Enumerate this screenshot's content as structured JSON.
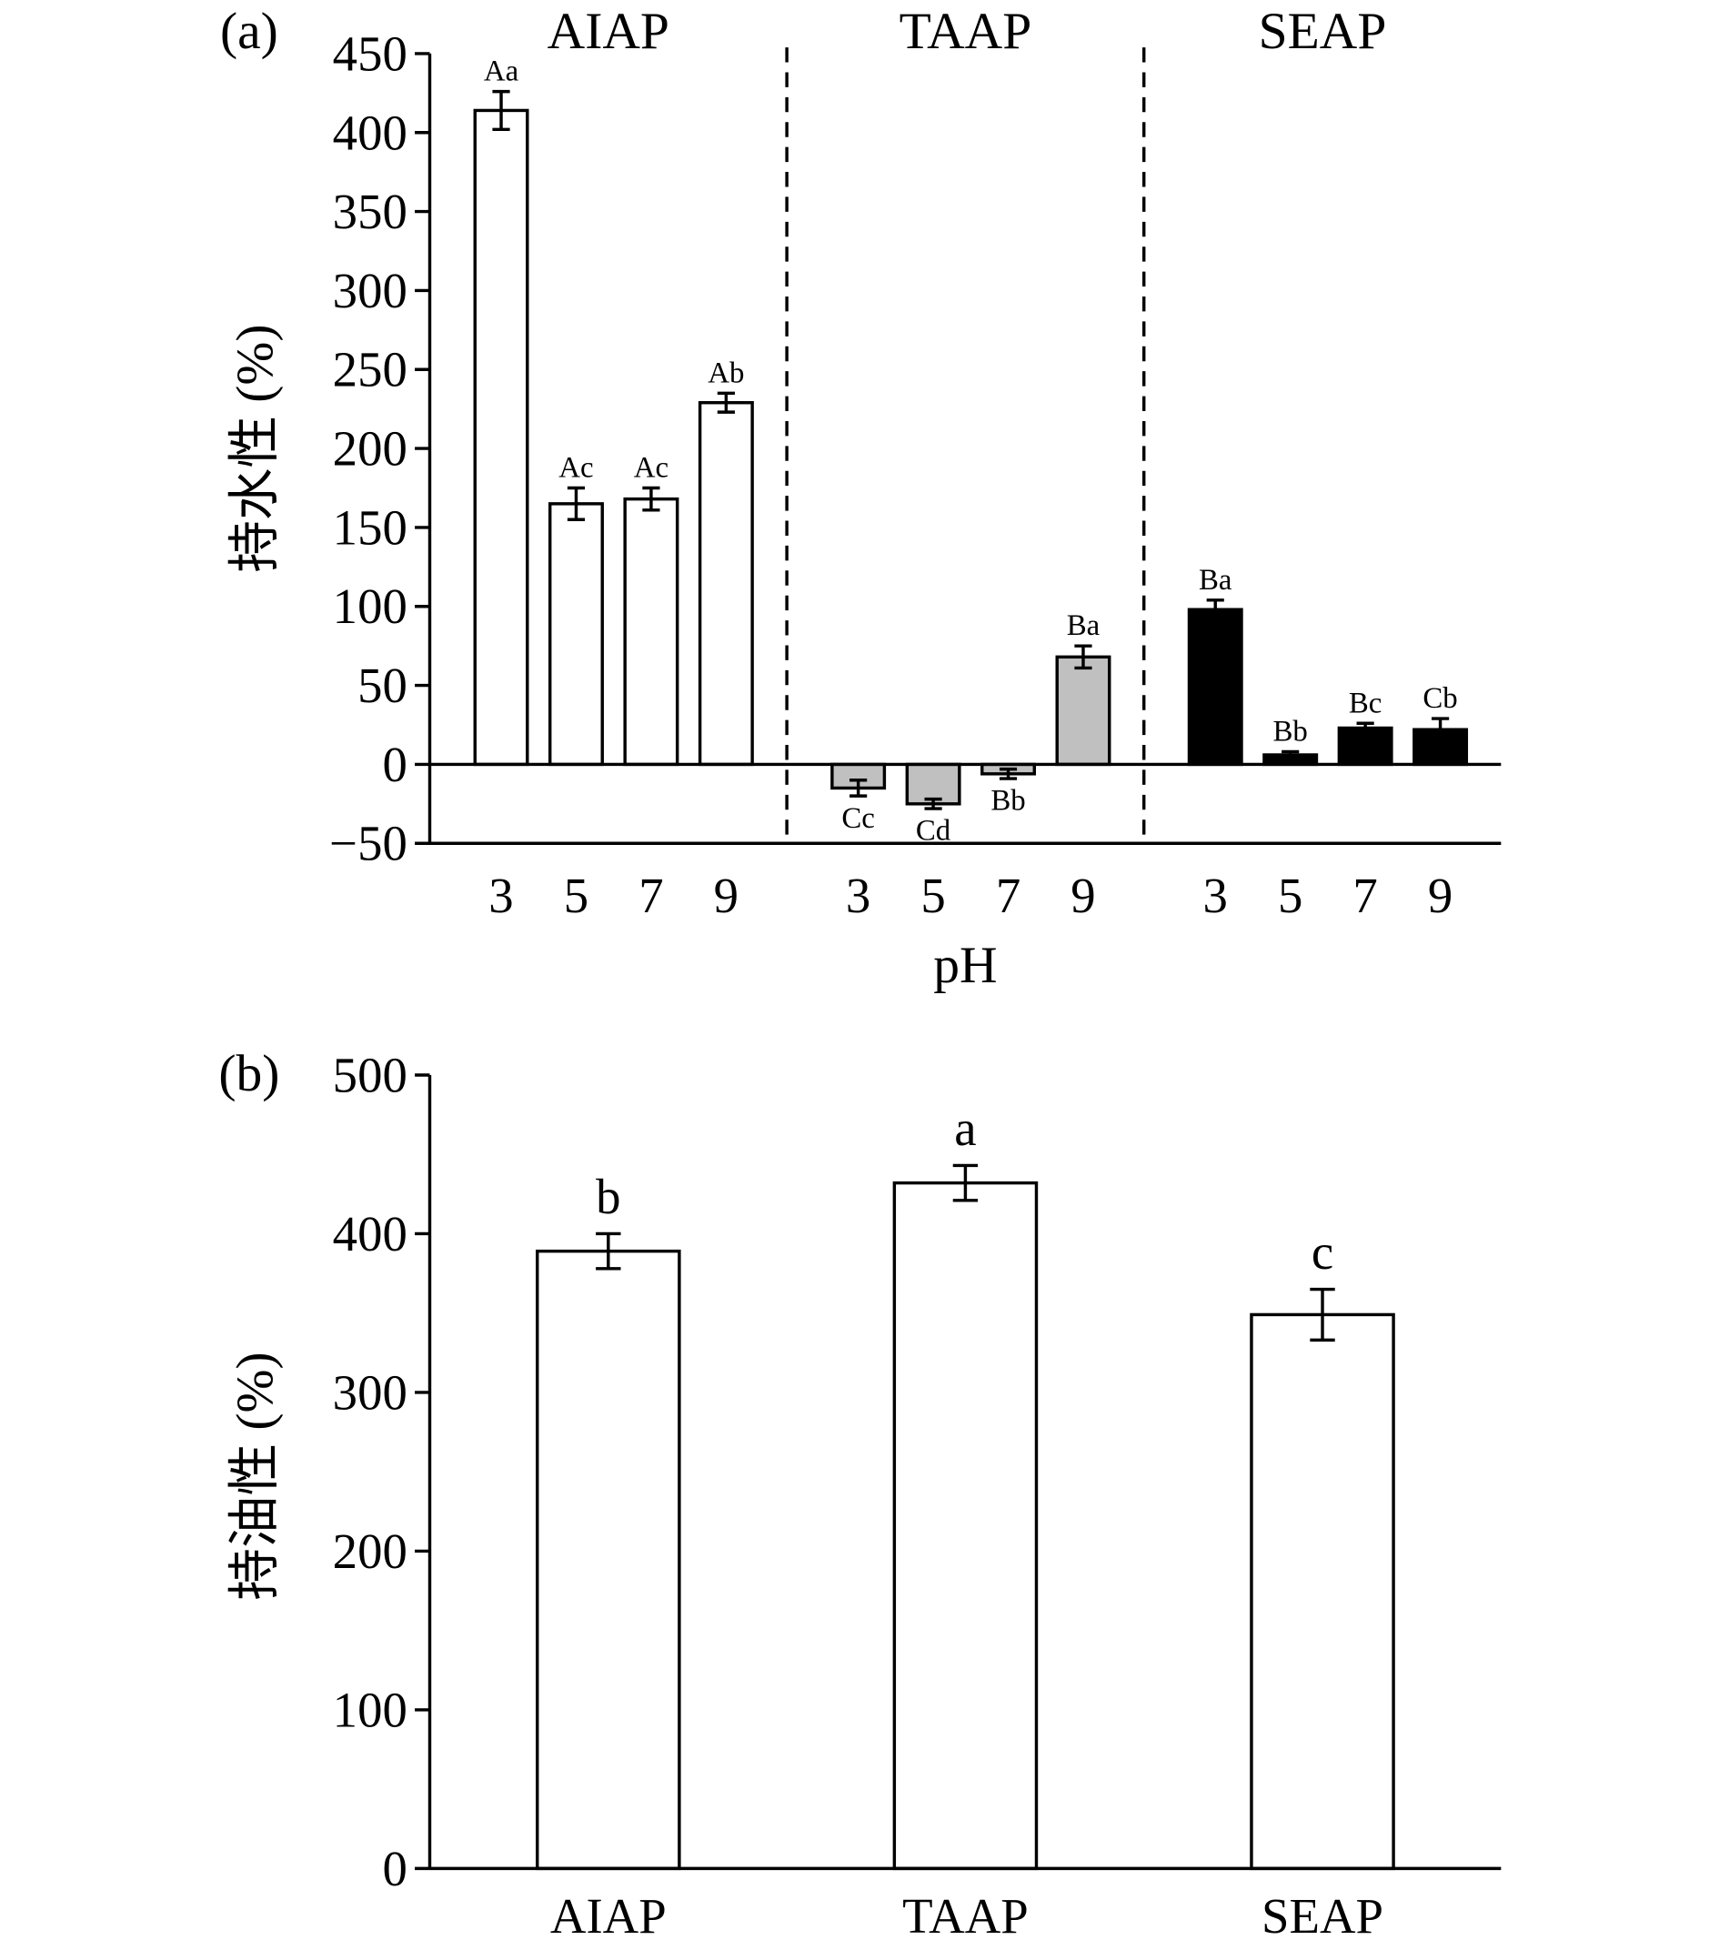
{
  "chart_data": [
    {
      "type": "grouped_bar",
      "label": "(a)",
      "ylabel": "持水性 (%)",
      "xlabel": "pH",
      "ylim": [
        -50,
        450
      ],
      "yticks": [
        {
          "value": -50,
          "label": "−50"
        },
        0,
        50,
        100,
        150,
        200,
        250,
        300,
        350,
        400,
        450
      ],
      "series": [
        {
          "name": "AIAP",
          "color": "#ffffff",
          "categories": [
            "3",
            "5",
            "7",
            "9"
          ],
          "values": [
            414,
            165,
            168,
            229
          ],
          "errors": [
            12,
            10,
            7,
            6
          ],
          "letters": [
            "Aa",
            "Ac",
            "Ac",
            "Ab"
          ]
        },
        {
          "name": "TAAP",
          "color": "#c0c0c0",
          "categories": [
            "3",
            "5",
            "7",
            "9"
          ],
          "values": [
            -15,
            -25,
            -6,
            68
          ],
          "errors": [
            5,
            3,
            3,
            7
          ],
          "letters": [
            "Cc",
            "Cd",
            "Bb",
            "Ba"
          ]
        },
        {
          "name": "SEAP",
          "color": "#000000",
          "categories": [
            "3",
            "5",
            "7",
            "9"
          ],
          "values": [
            98,
            6,
            23,
            22
          ],
          "errors": [
            6,
            2,
            3,
            7
          ],
          "letters": [
            "Ba",
            "Bb",
            "Bc",
            "Cb"
          ]
        }
      ]
    },
    {
      "type": "bar",
      "label": "(b)",
      "ylabel": "持油性 (%)",
      "ylim": [
        0,
        500
      ],
      "yticks": [
        0,
        100,
        200,
        300,
        400,
        500
      ],
      "categories": [
        "AIAP",
        "TAAP",
        "SEAP"
      ],
      "values": [
        389,
        432,
        349
      ],
      "errors": [
        11,
        11,
        16
      ],
      "letters": [
        "b",
        "a",
        "c"
      ],
      "color": "#ffffff"
    }
  ]
}
